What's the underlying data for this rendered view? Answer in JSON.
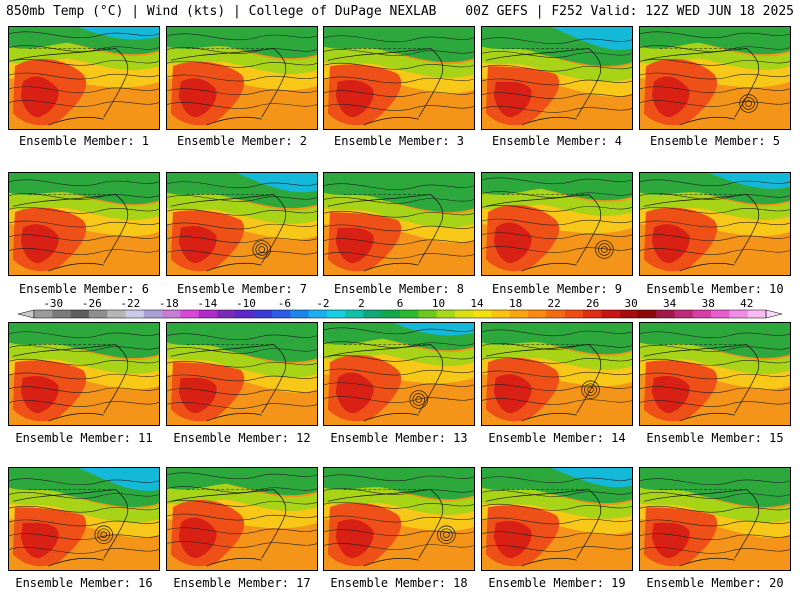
{
  "header": {
    "left_title": "850mb Temp (°C) | Wind (kts) | College of DuPage NEXLAB",
    "right_title": "00Z GEFS | F252 Valid: 12Z WED JUN 18 2025"
  },
  "panels": [
    {
      "label": "Ensemble Member: 1",
      "low": false
    },
    {
      "label": "Ensemble Member: 2",
      "low": false
    },
    {
      "label": "Ensemble Member: 3",
      "low": false
    },
    {
      "label": "Ensemble Member: 4",
      "low": false
    },
    {
      "label": "Ensemble Member: 5",
      "low": true
    },
    {
      "label": "Ensemble Member: 6",
      "low": false
    },
    {
      "label": "Ensemble Member: 7",
      "low": true
    },
    {
      "label": "Ensemble Member: 8",
      "low": false
    },
    {
      "label": "Ensemble Member: 9",
      "low": true
    },
    {
      "label": "Ensemble Member: 10",
      "low": false
    },
    {
      "label": "Ensemble Member: 11",
      "low": false
    },
    {
      "label": "Ensemble Member: 12",
      "low": false
    },
    {
      "label": "Ensemble Member: 13",
      "low": true
    },
    {
      "label": "Ensemble Member: 14",
      "low": true
    },
    {
      "label": "Ensemble Member: 15",
      "low": false
    },
    {
      "label": "Ensemble Member: 16",
      "low": true
    },
    {
      "label": "Ensemble Member: 17",
      "low": false
    },
    {
      "label": "Ensemble Member: 18",
      "low": true
    },
    {
      "label": "Ensemble Member: 19",
      "low": false
    },
    {
      "label": "Ensemble Member: 20",
      "low": false
    }
  ],
  "colorbar": {
    "ticks": [
      "-30",
      "-26",
      "-22",
      "-18",
      "-14",
      "-10",
      "-6",
      "-2",
      "2",
      "6",
      "10",
      "14",
      "18",
      "22",
      "26",
      "30",
      "34",
      "38",
      "42"
    ],
    "colors": [
      "#9c9c9c",
      "#7a7a7a",
      "#5e5e5e",
      "#8f8f8f",
      "#b5b5b5",
      "#c9c9e8",
      "#a9a0d8",
      "#c77cd6",
      "#d946d9",
      "#b02cc8",
      "#7a2ab8",
      "#5a28c8",
      "#3a3ad8",
      "#2a5ce8",
      "#1a86ec",
      "#18b0ee",
      "#14d0e0",
      "#10c0a8",
      "#10a878",
      "#14a84c",
      "#2cb82c",
      "#6cc81c",
      "#a8d818",
      "#d8e014",
      "#f4e010",
      "#f8c410",
      "#f8a610",
      "#f88a10",
      "#f46c12",
      "#ee4c14",
      "#e02c14",
      "#c81414",
      "#a80c0c",
      "#8c0808",
      "#a01848",
      "#c02878",
      "#d83ca8",
      "#e85cd0",
      "#f08ce4",
      "#f8bcf0"
    ]
  },
  "map_colors": {
    "cold": "#14b8d8",
    "cool": "#2ca83c",
    "mild": "#a8d418",
    "warm": "#f8c818",
    "hot": "#f49418",
    "vhot": "#ee5018",
    "xhot": "#d82014"
  }
}
